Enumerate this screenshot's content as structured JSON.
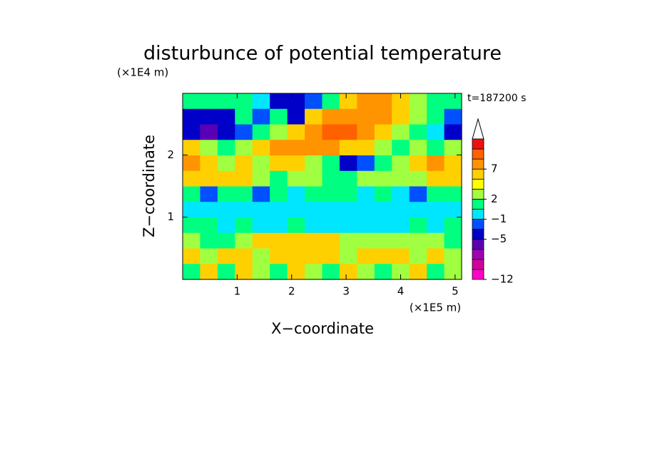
{
  "chart_data": {
    "type": "contour",
    "title": "disturbunce of potential temperature",
    "subtitle": "t=187200 s",
    "x_label": "X−coordinate",
    "y_label": "Z−coordinate",
    "x_unit": "(×1E5 m)",
    "y_unit": "(×1E4 m)",
    "xlim": [
      0,
      5.12
    ],
    "ylim": [
      0,
      2.99
    ],
    "xticks": [
      1,
      2,
      3,
      4,
      5
    ],
    "yticks": [
      1,
      2
    ],
    "levels": [
      -12,
      -10,
      -8,
      -6,
      -5,
      -3,
      -1,
      1,
      2,
      4,
      5,
      7,
      9,
      11,
      13
    ],
    "colors": [
      "#ff00c8",
      "#d2009f",
      "#a000b4",
      "#5a00b4",
      "#0000c8",
      "#0050ff",
      "#00e6ff",
      "#00ff80",
      "#a0ff40",
      "#ffff00",
      "#ffd000",
      "#ff9400",
      "#ff6000",
      "#ee1010"
    ],
    "colorbar_ticks": [
      {
        "value": -12,
        "label": "−12"
      },
      {
        "value": -5,
        "label": "−5"
      },
      {
        "value": -1,
        "label": "−1"
      },
      2,
      7
    ],
    "field": [
      [
        1.5,
        1.5,
        1.5,
        1.5,
        0,
        -4,
        -4,
        -2,
        1.5,
        5,
        8,
        8,
        5,
        3,
        1.5,
        1.5
      ],
      [
        -4,
        -4,
        -4,
        1.5,
        -2,
        1.5,
        -4,
        5,
        8,
        8,
        8,
        8,
        5,
        3,
        1.5,
        -2
      ],
      [
        -4,
        -6,
        -4,
        -2,
        1.5,
        3,
        5,
        8,
        10,
        10,
        8,
        5,
        3,
        1.5,
        0,
        -4
      ],
      [
        5,
        3,
        1.5,
        3,
        5,
        8,
        8,
        8,
        8,
        5,
        5,
        3,
        1.5,
        3,
        1.5,
        3
      ],
      [
        8,
        5,
        3,
        5,
        3,
        5,
        5,
        3,
        1.5,
        -4,
        -2,
        1.5,
        3,
        5,
        8,
        5
      ],
      [
        5,
        5,
        5,
        5,
        3,
        1.5,
        3,
        3,
        1.5,
        1.5,
        3,
        3,
        3,
        3,
        5,
        5
      ],
      [
        1.5,
        -2,
        1.5,
        1.5,
        -2,
        1.5,
        0,
        1.5,
        1.5,
        1.5,
        0,
        1.5,
        0,
        -2,
        1.5,
        1.5
      ],
      [
        0,
        0,
        0,
        0,
        0,
        0,
        0,
        0,
        0,
        0,
        0,
        0,
        0,
        0,
        0,
        0
      ],
      [
        1.5,
        1.5,
        0,
        1.5,
        0,
        0,
        1.5,
        0,
        0,
        0,
        0,
        0,
        0,
        1.5,
        0,
        1.5
      ],
      [
        3,
        1.5,
        1.5,
        3,
        5,
        5,
        5,
        5,
        5,
        3,
        3,
        3,
        3,
        3,
        3,
        1.5
      ],
      [
        5,
        3,
        5,
        5,
        3,
        5,
        5,
        5,
        5,
        3,
        5,
        5,
        5,
        3,
        5,
        3
      ],
      [
        1.5,
        5,
        1.5,
        5,
        3,
        1.5,
        5,
        3,
        1.5,
        5,
        3,
        1.5,
        3,
        5,
        1.5,
        3
      ]
    ]
  }
}
